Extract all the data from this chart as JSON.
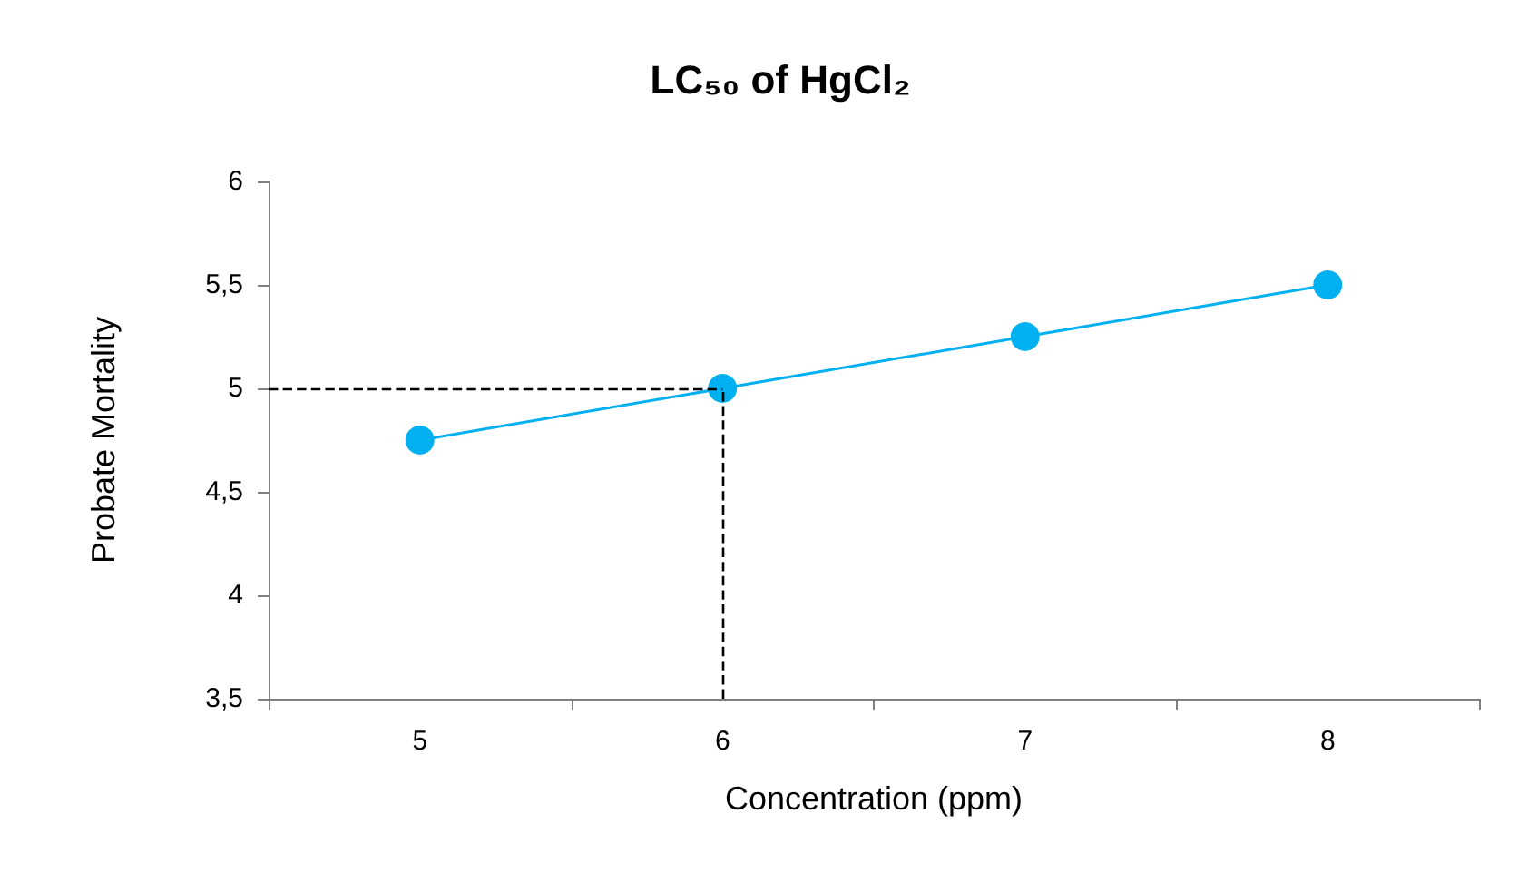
{
  "chart_data": {
    "type": "line",
    "title": "LC₅₀ of HgCl₂",
    "xlabel": "Concentration (ppm)",
    "ylabel": "Probate Mortality",
    "categories": [
      "5",
      "6",
      "7",
      "8"
    ],
    "series": [
      {
        "color": "#00b0f0",
        "values": [
          4.75,
          5.0,
          5.25,
          5.5
        ]
      }
    ],
    "ylim": [
      3.5,
      6
    ],
    "yticks": [
      {
        "value": 3.5,
        "label": "3,5"
      },
      4,
      {
        "value": 4.5,
        "label": "4,5"
      },
      5,
      {
        "value": 5.5,
        "label": "5,5"
      },
      6
    ],
    "ref_lines": [
      {
        "axis": "y",
        "value": 5,
        "color": "#000000",
        "line_style": "dashed"
      },
      {
        "axis": "x",
        "value": "6",
        "color": "#000000",
        "line_style": "dashed"
      }
    ],
    "grid": false,
    "marker": "circle",
    "line_style": "solid"
  }
}
